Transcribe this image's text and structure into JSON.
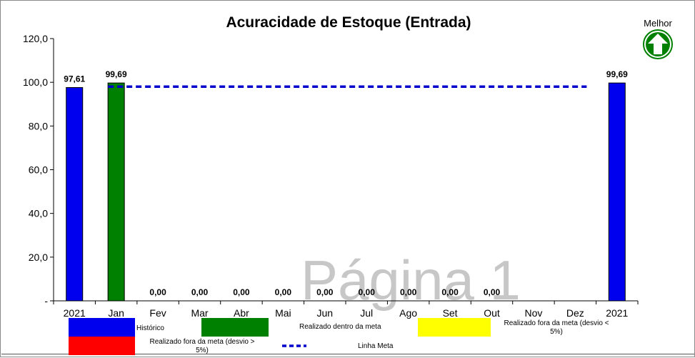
{
  "chart_data": {
    "type": "bar",
    "title": "Acuracidade de Estoque (Entrada)",
    "xlabel": "",
    "ylabel": "",
    "ylim": [
      0,
      120
    ],
    "yticks": [
      "-",
      "20,0",
      "40,0",
      "60,0",
      "80,0",
      "100,0",
      "120,0"
    ],
    "categories": [
      "2021",
      "Jan",
      "Fev",
      "Mar",
      "Abr",
      "Mai",
      "Jun",
      "Jul",
      "Ago",
      "Set",
      "Out",
      "Nov",
      "Dez",
      "2021"
    ],
    "values": [
      97.61,
      99.69,
      0,
      0,
      0,
      0,
      0,
      0,
      0,
      0,
      0,
      null,
      null,
      99.69
    ],
    "value_labels": [
      "97,61",
      "99,69",
      "0,00",
      "0,00",
      "0,00",
      "0,00",
      "0,00",
      "0,00",
      "0,00",
      "0,00",
      "0,00",
      "",
      "",
      "99,69"
    ],
    "bar_colors": [
      "#0000ee",
      "#008000",
      "#008000",
      "#008000",
      "#008000",
      "#008000",
      "#008000",
      "#008000",
      "#008000",
      "#008000",
      "#008000",
      "#008000",
      "#008000",
      "#0000ee"
    ],
    "target_line": {
      "value": 98,
      "from_index": 1,
      "to_index": 12,
      "color": "#0000cc"
    },
    "legend": [
      {
        "label": "Histórico",
        "color": "#0000ee"
      },
      {
        "label": "Realizado dentro da meta",
        "color": "#008000"
      },
      {
        "label_lines": [
          "Realizado fora da meta (desvio <",
          "5%)"
        ],
        "color": "#ffff00"
      },
      {
        "label_lines": [
          "Realizado fora da meta (desvio >",
          "5%)"
        ],
        "color": "#ff0000"
      },
      {
        "label": "Linha Meta",
        "color": "#0000cc"
      }
    ],
    "legend_placement": "bottom",
    "grid": false
  },
  "indicator": {
    "label": "Melhor",
    "icon": "up-arrow-icon",
    "color": "#008000"
  },
  "watermark": "Página 1"
}
